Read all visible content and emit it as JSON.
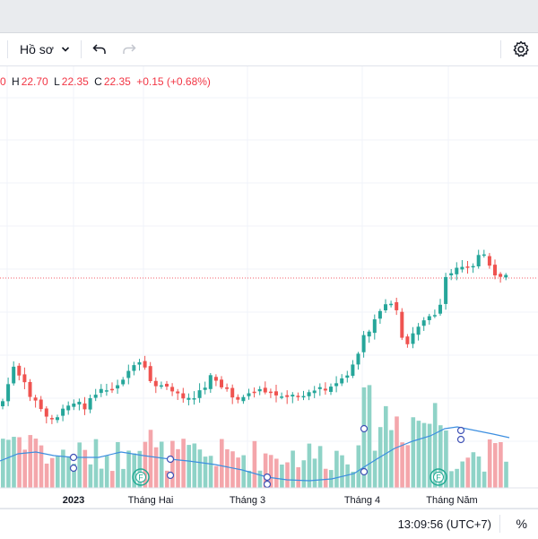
{
  "toolbar": {
    "profile_label": "Hồ sơ",
    "icons": [
      "chevron-down-icon",
      "undo-icon",
      "redo-icon",
      "gear-icon"
    ]
  },
  "legend": {
    "open_partial": "0",
    "high_label": "H",
    "high_value": "22.70",
    "low_label": "L",
    "low_value": "22.35",
    "close_label": "C",
    "close_value": "22.35",
    "change": "+0.15 (+0.68%)"
  },
  "time_axis": {
    "labels": [
      "2023",
      "Tháng Hai",
      "Tháng 3",
      "Tháng 4",
      "Tháng Năm"
    ]
  },
  "status": {
    "time": "13:09:56 (UTC+7)",
    "percent": "%"
  },
  "colors": {
    "up": "#26a69a",
    "down": "#ef5350",
    "up_volume": "#8fd3c7",
    "down_volume": "#f4a6ab",
    "ma_line": "#3d8fe0",
    "price_line": "#f23645"
  },
  "chart_data": {
    "type": "candlestick",
    "x_labels": [
      "2023",
      "Tháng Hai",
      "Tháng 3",
      "Tháng 4",
      "Tháng Năm"
    ],
    "last": {
      "high": 22.7,
      "low": 22.35,
      "close": 22.35,
      "change": 0.15,
      "change_pct": 0.68
    },
    "grid": true,
    "events": [
      {
        "marker": "F",
        "near": "Tháng Hai"
      },
      {
        "marker": "F",
        "near": "Tháng Năm"
      }
    ]
  }
}
